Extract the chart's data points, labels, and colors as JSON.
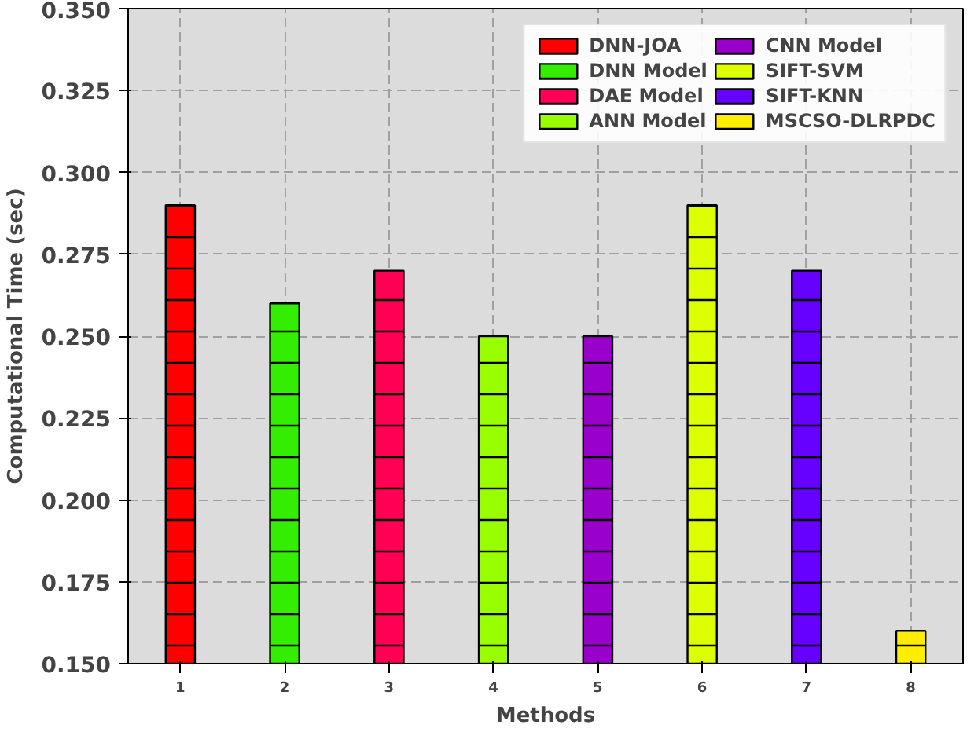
{
  "chart_data": {
    "type": "bar",
    "xlabel": "Methods",
    "ylabel": "Computational Time (sec)",
    "xlim": [
      0.5,
      8.5
    ],
    "xticks": [
      1,
      2,
      3,
      4,
      5,
      6,
      7,
      8
    ],
    "ylim": [
      0.15,
      0.35
    ],
    "yticks": [
      {
        "value": 0.15,
        "label": "0.150"
      },
      {
        "value": 0.175,
        "label": "0.175"
      },
      {
        "value": 0.2,
        "label": "0.200"
      },
      {
        "value": 0.225,
        "label": "0.225"
      },
      {
        "value": 0.25,
        "label": "0.250"
      },
      {
        "value": 0.275,
        "label": "0.275"
      },
      {
        "value": 0.3,
        "label": "0.300"
      },
      {
        "value": 0.325,
        "label": "0.325"
      },
      {
        "value": 0.35,
        "label": "0.350"
      }
    ],
    "grid": true,
    "legend": "top right",
    "series": [
      {
        "name": "DNN-JOA",
        "color": "#ff0000",
        "x": [
          1
        ],
        "values": [
          0.29
        ]
      },
      {
        "name": "DNN Model",
        "color": "#33ee00",
        "x": [
          2
        ],
        "values": [
          0.26
        ]
      },
      {
        "name": "DAE Model",
        "color": "#ff0055",
        "x": [
          3
        ],
        "values": [
          0.27
        ]
      },
      {
        "name": "ANN Model",
        "color": "#99ff00",
        "x": [
          4
        ],
        "values": [
          0.25
        ]
      },
      {
        "name": "CNN Model",
        "color": "#9900cc",
        "x": [
          5
        ],
        "values": [
          0.25
        ]
      },
      {
        "name": "SIFT-SVM",
        "color": "#ddff00",
        "x": [
          6
        ],
        "values": [
          0.29
        ]
      },
      {
        "name": "SIFT-KNN",
        "color": "#6600ff",
        "x": [
          7
        ],
        "values": [
          0.27
        ]
      },
      {
        "name": "MSCSO-DLRPDC",
        "color": "#ffee00",
        "x": [
          8
        ],
        "values": [
          0.16
        ]
      }
    ]
  }
}
